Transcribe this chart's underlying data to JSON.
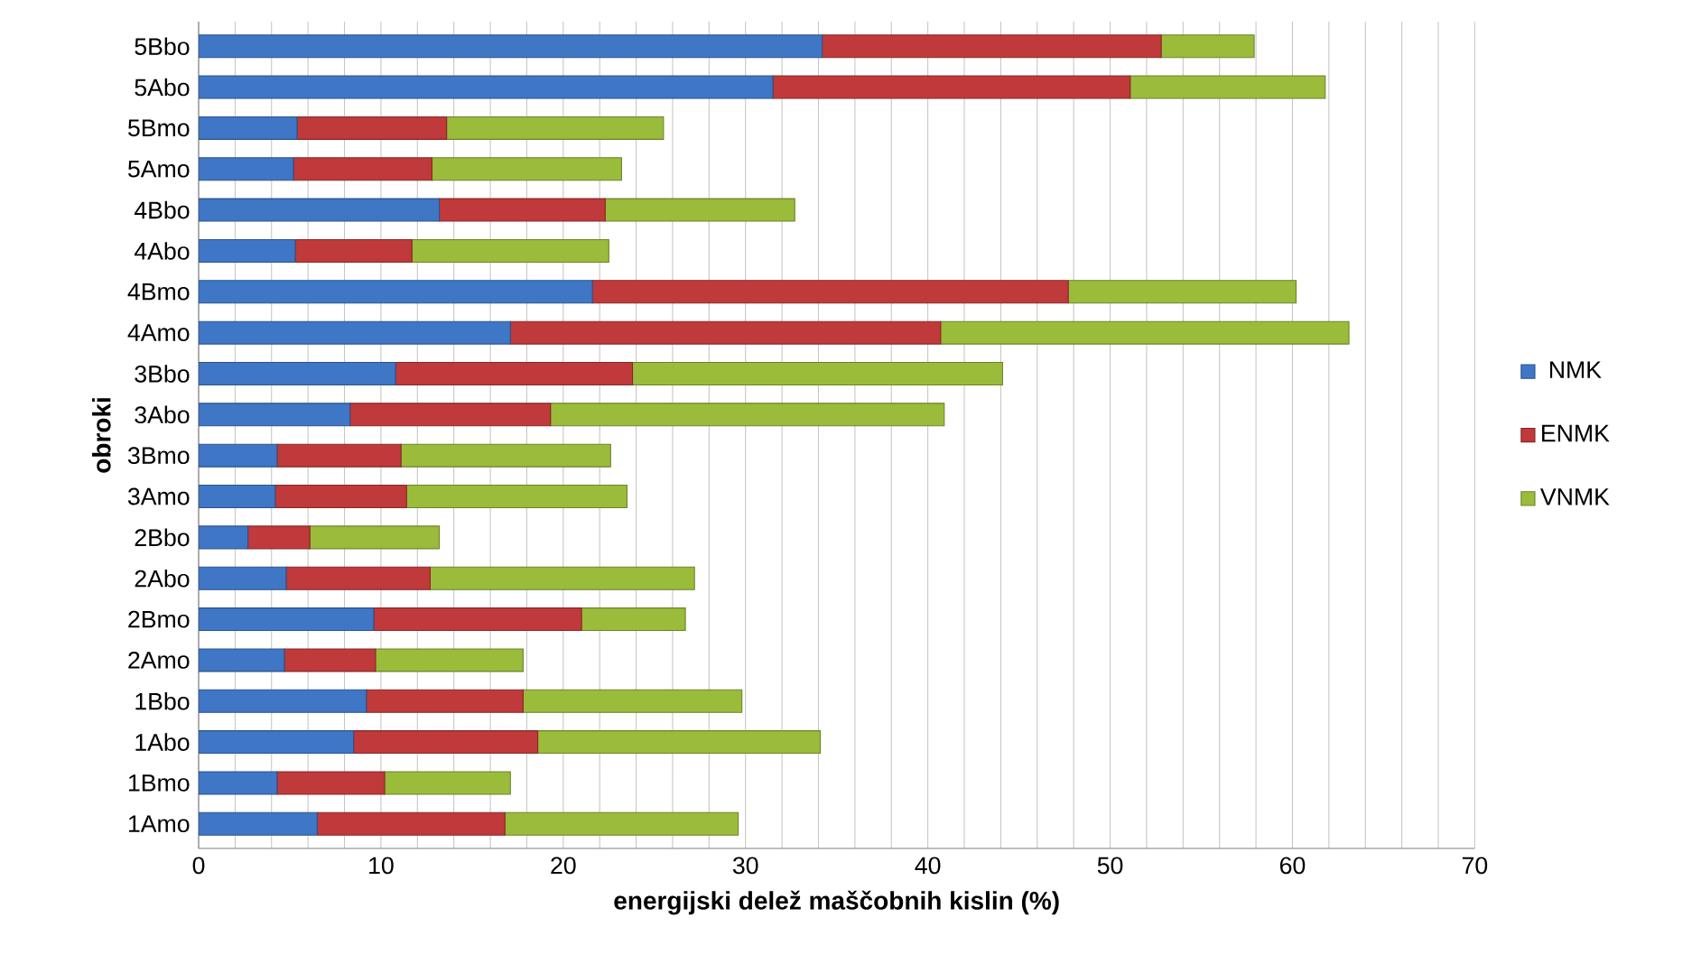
{
  "chart_data": {
    "type": "bar",
    "orientation": "horizontal",
    "stacked": true,
    "xlabel": "energijski delež maščobnih kislin (%)",
    "ylabel": "obroki",
    "categories": [
      "5Bbo",
      "5Abo",
      "5Bmo",
      "5Amo",
      "4Bbo",
      "4Abo",
      "4Bmo",
      "4Amo",
      "3Bbo",
      "3Abo",
      "3Bmo",
      "3Amo",
      "2Bbo",
      "2Abo",
      "2Bmo",
      "2Amo",
      "1Bbo",
      "1Abo",
      "1Bmo",
      "1Amo"
    ],
    "series": [
      {
        "name": "NMK",
        "color": "#3f76c6",
        "values": [
          34.2,
          31.5,
          5.4,
          5.2,
          13.2,
          5.3,
          21.6,
          17.1,
          10.8,
          8.3,
          4.3,
          4.2,
          2.7,
          4.8,
          9.6,
          4.7,
          9.2,
          8.5,
          4.3,
          6.5
        ]
      },
      {
        "name": "ENMK",
        "color": "#c0393b",
        "values": [
          18.6,
          19.6,
          8.2,
          7.6,
          9.1,
          6.4,
          26.1,
          23.6,
          13.0,
          11.0,
          6.8,
          7.2,
          3.4,
          7.9,
          11.4,
          5.0,
          8.6,
          10.1,
          5.9,
          10.3
        ]
      },
      {
        "name": "VNMK",
        "color": "#9bbb3b",
        "values": [
          5.1,
          10.7,
          11.9,
          10.4,
          10.4,
          10.8,
          12.5,
          22.4,
          20.3,
          21.6,
          11.5,
          12.1,
          7.1,
          14.5,
          5.7,
          8.1,
          12.0,
          15.5,
          6.9,
          12.8
        ]
      }
    ],
    "xlim": [
      0,
      70
    ],
    "xticks": [
      0,
      10,
      20,
      30,
      40,
      50,
      60,
      70
    ],
    "grid": "x",
    "legend": "right"
  }
}
